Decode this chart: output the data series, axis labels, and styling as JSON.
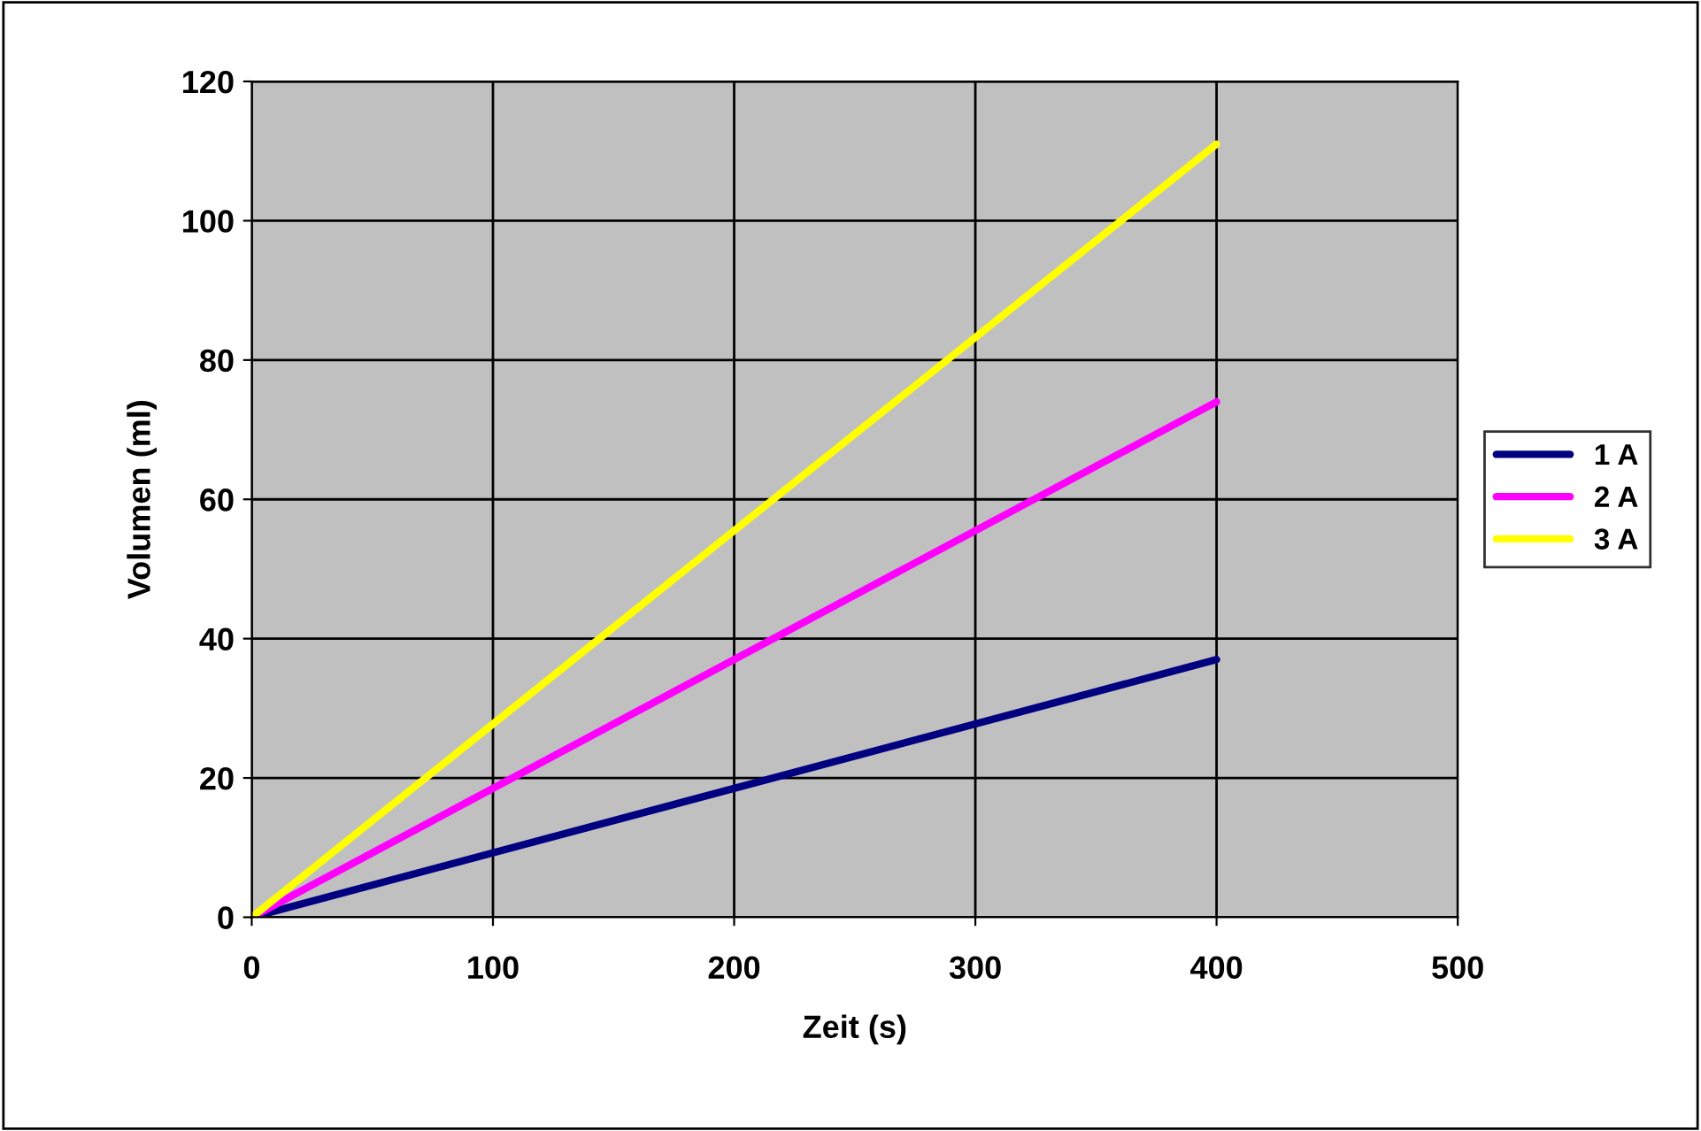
{
  "chart_data": {
    "type": "line",
    "xlabel": "Zeit (s)",
    "ylabel": "Volumen (ml)",
    "x": [
      0,
      400
    ],
    "series": [
      {
        "name": "1 A",
        "color": "#000080",
        "values": [
          0,
          37
        ]
      },
      {
        "name": "2 A",
        "color": "#ff00ff",
        "values": [
          0,
          74
        ]
      },
      {
        "name": "3 A",
        "color": "#ffff00",
        "values": [
          0,
          111
        ]
      }
    ],
    "xlim": [
      0,
      500
    ],
    "xticks": [
      0,
      100,
      200,
      300,
      400,
      500
    ],
    "ylim": [
      0,
      120
    ],
    "yticks": [
      0,
      20,
      40,
      60,
      80,
      100,
      120
    ],
    "grid": true,
    "legend": "right",
    "marker": "none",
    "line_style": "solid"
  }
}
